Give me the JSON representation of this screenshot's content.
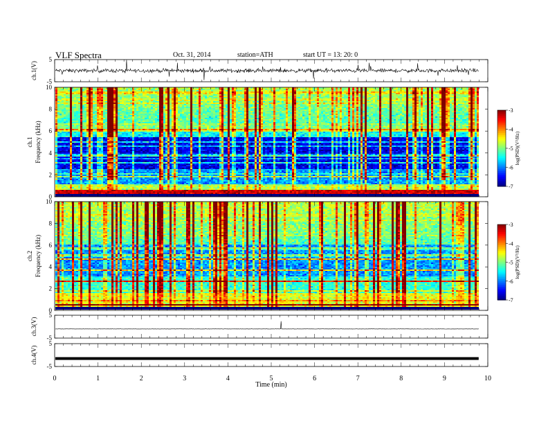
{
  "header": {
    "title": "VLF  Spectra",
    "date": "Oct. 31, 2014",
    "station": "station=ATH",
    "start": "start  UT  =   13: 20: 0"
  },
  "chart_data": [
    {
      "type": "line",
      "ylabel": "ch.1(V)",
      "ylim": [
        -5,
        5
      ],
      "yticks": [
        "5",
        "-5"
      ],
      "baseline": 0
    },
    {
      "type": "heatmap",
      "ylabel_top": "ch.1",
      "ylabel": "Frequency  (kHz)",
      "ylim": [
        0,
        10
      ],
      "yticks": [
        "0",
        "2",
        "4",
        "6",
        "8",
        "10"
      ],
      "colorbar": {
        "label": "log(PSD)(V²/Hz)",
        "ticks": [
          "-3",
          "-4",
          "-5",
          "-6",
          "-7"
        ],
        "range": [
          -7,
          -3
        ]
      }
    },
    {
      "type": "heatmap",
      "ylabel_top": "ch.2",
      "ylabel": "Frequency  (kHz)",
      "ylim": [
        0,
        10
      ],
      "yticks": [
        "0",
        "2",
        "4",
        "6",
        "8",
        "10"
      ],
      "colorbar": {
        "label": "log(PSD)(V²/Hz)",
        "ticks": [
          "-3",
          "-4",
          "-5",
          "-6",
          "-7"
        ],
        "range": [
          -7,
          -3
        ]
      }
    },
    {
      "type": "line",
      "ylabel": "ch.3(V)",
      "ylim": [
        -5,
        5
      ],
      "yticks": [
        "5",
        "-5"
      ],
      "baseline": -1
    },
    {
      "type": "line",
      "ylabel": "ch.4(V)",
      "ylim": [
        -5,
        5
      ],
      "yticks": [
        "5",
        "-5"
      ],
      "baseline": -1.5
    }
  ],
  "xaxis": {
    "label": "Time  (min)",
    "xlim": [
      0,
      10
    ],
    "ticks": [
      "0",
      "1",
      "2",
      "3",
      "4",
      "5",
      "6",
      "7",
      "8",
      "9",
      "10"
    ],
    "data_end": 9.8
  }
}
